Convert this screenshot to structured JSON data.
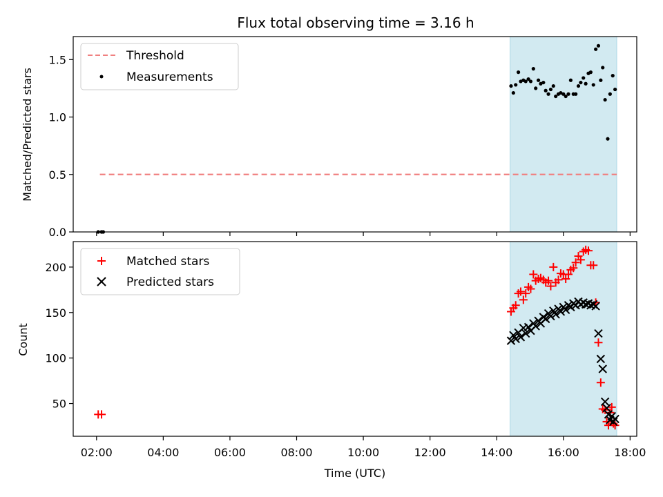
{
  "figure_title": "Flux total observing time = 3.16 h",
  "chart_data": [
    {
      "type": "scatter",
      "panel": "top",
      "title": "Flux total observing time = 3.16 h",
      "xlabel": "",
      "ylabel": "Matched/Predicted stars",
      "ylim": [
        0.0,
        1.7
      ],
      "yticks": [
        0.0,
        0.5,
        1.0,
        1.5
      ],
      "ytick_labels": [
        "0.0",
        "0.5",
        "1.0",
        "1.5"
      ],
      "xlim_hours": [
        1.3,
        18.2
      ],
      "highlight_span_hours": [
        14.4,
        17.6
      ],
      "highlight_color": "#add8e6",
      "legend_position": "upper left",
      "series": [
        {
          "name": "Threshold",
          "kind": "dashed-line",
          "color": "#f08080",
          "x_hours": [
            2.1,
            17.6
          ],
          "values": [
            0.5,
            0.5
          ]
        },
        {
          "name": "Measurements",
          "kind": "dot",
          "color": "#000000",
          "x_hours": [
            2.05,
            2.15,
            2.2,
            14.43,
            14.5,
            14.57,
            14.65,
            14.72,
            14.8,
            14.87,
            14.95,
            15.02,
            15.1,
            15.17,
            15.25,
            15.32,
            15.4,
            15.47,
            15.55,
            15.62,
            15.7,
            15.77,
            15.85,
            15.92,
            16.0,
            16.07,
            16.15,
            16.22,
            16.3,
            16.37,
            16.45,
            16.52,
            16.6,
            16.67,
            16.75,
            16.82,
            16.9,
            16.97,
            17.05,
            17.12,
            17.18,
            17.25,
            17.33,
            17.4,
            17.48,
            17.55
          ],
          "values": [
            0.0,
            0.0,
            0.0,
            1.27,
            1.21,
            1.28,
            1.39,
            1.31,
            1.32,
            1.31,
            1.33,
            1.31,
            1.42,
            1.25,
            1.32,
            1.29,
            1.3,
            1.23,
            1.2,
            1.24,
            1.27,
            1.18,
            1.2,
            1.21,
            1.2,
            1.18,
            1.2,
            1.32,
            1.2,
            1.2,
            1.27,
            1.3,
            1.34,
            1.29,
            1.38,
            1.39,
            1.28,
            1.59,
            1.62,
            1.32,
            1.43,
            1.15,
            0.81,
            1.2,
            1.36,
            1.24
          ]
        }
      ]
    },
    {
      "type": "scatter",
      "panel": "bottom",
      "xlabel": "Time (UTC)",
      "ylabel": "Count",
      "ylim": [
        14,
        228
      ],
      "yticks": [
        50,
        100,
        150,
        200
      ],
      "ytick_labels": [
        "50",
        "100",
        "150",
        "200"
      ],
      "xlim_hours": [
        1.3,
        18.2
      ],
      "xticks_hours": [
        2,
        4,
        6,
        8,
        10,
        12,
        14,
        16,
        18
      ],
      "xtick_labels": [
        "02:00",
        "04:00",
        "06:00",
        "08:00",
        "10:00",
        "12:00",
        "14:00",
        "16:00",
        "18:00"
      ],
      "highlight_span_hours": [
        14.4,
        17.6
      ],
      "highlight_color": "#add8e6",
      "legend_position": "upper left",
      "series": [
        {
          "name": "Matched stars",
          "kind": "plus",
          "color": "#ff0000",
          "x_hours": [
            2.05,
            2.15,
            14.43,
            14.5,
            14.57,
            14.65,
            14.72,
            14.8,
            14.87,
            14.95,
            15.02,
            15.1,
            15.17,
            15.25,
            15.32,
            15.4,
            15.47,
            15.55,
            15.62,
            15.7,
            15.77,
            15.85,
            15.92,
            16.0,
            16.07,
            16.15,
            16.22,
            16.3,
            16.37,
            16.45,
            16.52,
            16.6,
            16.67,
            16.75,
            16.82,
            16.9,
            16.97,
            17.05,
            17.12,
            17.18,
            17.25,
            17.3,
            17.35,
            17.4,
            17.45,
            17.5,
            17.55
          ],
          "values": [
            38,
            38,
            151,
            155,
            158,
            171,
            173,
            164,
            171,
            178,
            176,
            192,
            185,
            187,
            188,
            186,
            183,
            185,
            179,
            200,
            183,
            186,
            193,
            192,
            187,
            192,
            197,
            199,
            205,
            212,
            208,
            217,
            219,
            218,
            202,
            202,
            161,
            117,
            73,
            44,
            43,
            30,
            26,
            40,
            46,
            28,
            26
          ]
        },
        {
          "name": "Predicted stars",
          "kind": "cross",
          "color": "#000000",
          "x_hours": [
            14.43,
            14.5,
            14.57,
            14.65,
            14.72,
            14.8,
            14.87,
            14.95,
            15.02,
            15.1,
            15.17,
            15.25,
            15.32,
            15.4,
            15.47,
            15.55,
            15.62,
            15.7,
            15.77,
            15.85,
            15.92,
            16.0,
            16.07,
            16.15,
            16.22,
            16.3,
            16.37,
            16.45,
            16.52,
            16.6,
            16.67,
            16.75,
            16.82,
            16.9,
            16.97,
            17.05,
            17.12,
            17.18,
            17.25,
            17.3,
            17.35,
            17.4,
            17.45,
            17.5,
            17.55
          ],
          "values": [
            119,
            125,
            121,
            128,
            123,
            133,
            127,
            134,
            130,
            138,
            135,
            141,
            138,
            145,
            143,
            149,
            146,
            152,
            148,
            154,
            151,
            156,
            153,
            158,
            156,
            160,
            158,
            162,
            159,
            161,
            159,
            160,
            158,
            159,
            157,
            127,
            99,
            88,
            52,
            45,
            38,
            32,
            36,
            30,
            33
          ]
        }
      ]
    }
  ]
}
